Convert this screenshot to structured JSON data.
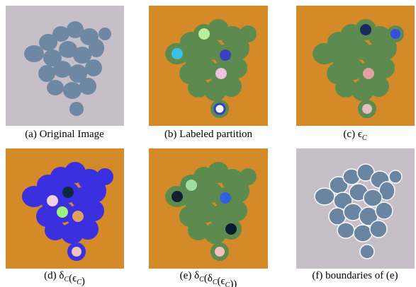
{
  "figure": {
    "panels": [
      {
        "caption": [
          {
            "text": "(a) Original Image"
          }
        ]
      },
      {
        "caption": [
          {
            "text": "(b) Labeled partition"
          }
        ]
      },
      {
        "caption": [
          {
            "text": "(c) ϵ",
            "sub": "C"
          }
        ]
      },
      {
        "caption": [
          {
            "text": "(d) δ",
            "sub": "C"
          },
          {
            "text": "(ϵ",
            "sub": "C"
          },
          {
            "text": ")"
          }
        ]
      },
      {
        "caption": [
          {
            "text": "(e) δ",
            "sub": "C"
          },
          {
            "text": "(δ",
            "sub": "C"
          },
          {
            "text": "(ϵ",
            "sub": "C"
          },
          {
            "text": "))"
          }
        ]
      },
      {
        "caption": [
          {
            "text": "(f) boundaries of (e)"
          }
        ]
      }
    ]
  }
}
